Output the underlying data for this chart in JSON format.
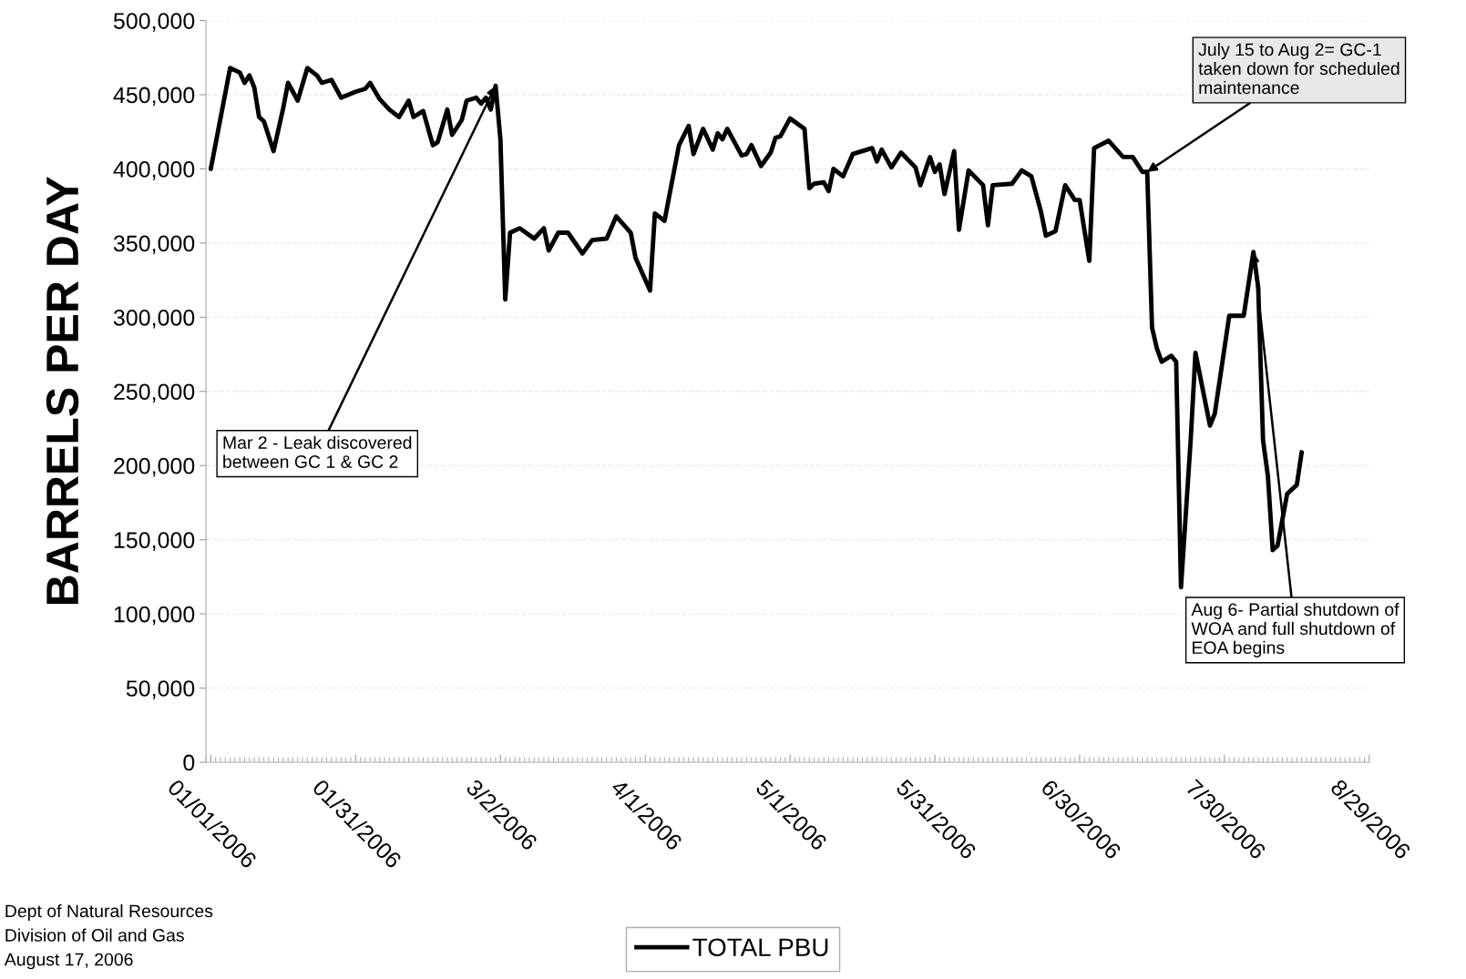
{
  "chart_data": {
    "type": "line",
    "ylabel": "BARRELS PER DAY",
    "x": [
      "2006-01-01",
      "2006-01-05",
      "2006-01-07",
      "2006-01-08",
      "2006-01-09",
      "2006-01-10",
      "2006-01-11",
      "2006-01-12",
      "2006-01-14",
      "2006-01-16",
      "2006-01-17",
      "2006-01-19",
      "2006-01-21",
      "2006-01-23",
      "2006-01-24",
      "2006-01-26",
      "2006-01-28",
      "2006-01-31",
      "2006-02-02",
      "2006-02-03",
      "2006-02-05",
      "2006-02-07",
      "2006-02-09",
      "2006-02-11",
      "2006-02-12",
      "2006-02-14",
      "2006-02-16",
      "2006-02-17",
      "2006-02-19",
      "2006-02-20",
      "2006-02-22",
      "2006-02-23",
      "2006-02-25",
      "2006-02-26",
      "2006-02-27",
      "2006-02-28",
      "2006-03-01",
      "2006-03-02",
      "2006-03-03",
      "2006-03-04",
      "2006-03-06",
      "2006-03-09",
      "2006-03-11",
      "2006-03-12",
      "2006-03-14",
      "2006-03-16",
      "2006-03-19",
      "2006-03-21",
      "2006-03-24",
      "2006-03-26",
      "2006-03-29",
      "2006-03-30",
      "2006-04-02",
      "2006-04-03",
      "2006-04-05",
      "2006-04-08",
      "2006-04-10",
      "2006-04-11",
      "2006-04-13",
      "2006-04-15",
      "2006-04-16",
      "2006-04-17",
      "2006-04-18",
      "2006-04-21",
      "2006-04-22",
      "2006-04-23",
      "2006-04-25",
      "2006-04-27",
      "2006-04-28",
      "2006-04-29",
      "2006-05-01",
      "2006-05-04",
      "2006-05-05",
      "2006-05-06",
      "2006-05-08",
      "2006-05-09",
      "2006-05-10",
      "2006-05-12",
      "2006-05-14",
      "2006-05-18",
      "2006-05-19",
      "2006-05-20",
      "2006-05-22",
      "2006-05-24",
      "2006-05-27",
      "2006-05-28",
      "2006-05-30",
      "2006-05-31",
      "2006-06-01",
      "2006-06-02",
      "2006-06-04",
      "2006-06-05",
      "2006-06-07",
      "2006-06-10",
      "2006-06-11",
      "2006-06-12",
      "2006-06-16",
      "2006-06-18",
      "2006-06-20",
      "2006-06-22",
      "2006-06-23",
      "2006-06-25",
      "2006-06-27",
      "2006-06-29",
      "2006-06-30",
      "2006-07-02",
      "2006-07-03",
      "2006-07-06",
      "2006-07-09",
      "2006-07-11",
      "2006-07-13",
      "2006-07-14",
      "2006-07-15",
      "2006-07-16",
      "2006-07-17",
      "2006-07-19",
      "2006-07-20",
      "2006-07-21",
      "2006-07-23",
      "2006-07-24",
      "2006-07-27",
      "2006-07-28",
      "2006-07-31",
      "2006-08-03",
      "2006-08-05",
      "2006-08-06",
      "2006-08-07",
      "2006-08-08",
      "2006-08-09",
      "2006-08-10",
      "2006-08-12",
      "2006-08-14",
      "2006-08-15"
    ],
    "series": [
      {
        "name": "TOTAL PBU",
        "color": "#000000",
        "values": [
          400000,
          468000,
          465000,
          458000,
          463000,
          455000,
          435000,
          432000,
          412000,
          441000,
          458000,
          446000,
          468000,
          463000,
          458000,
          460000,
          448000,
          452000,
          454000,
          458000,
          447000,
          440000,
          435000,
          446000,
          435000,
          439000,
          416000,
          418000,
          440000,
          423000,
          433000,
          446000,
          448000,
          444000,
          448000,
          440000,
          456000,
          420000,
          312000,
          357000,
          360000,
          353000,
          360000,
          345000,
          357000,
          357000,
          343000,
          352000,
          353000,
          368000,
          357000,
          340000,
          318000,
          370000,
          365000,
          416000,
          429000,
          410000,
          427000,
          413000,
          424000,
          420000,
          427000,
          409000,
          410000,
          416000,
          402000,
          411000,
          421000,
          422000,
          434000,
          427000,
          387000,
          390000,
          391000,
          385000,
          400000,
          395000,
          410000,
          414000,
          405000,
          413000,
          401000,
          411000,
          401000,
          389000,
          408000,
          398000,
          403000,
          383000,
          412000,
          359000,
          399000,
          389000,
          362000,
          389000,
          390000,
          399000,
          395000,
          371000,
          355000,
          358000,
          389000,
          379000,
          379000,
          338000,
          414000,
          419000,
          408000,
          408000,
          398000,
          398000,
          293000,
          279000,
          270000,
          274000,
          270000,
          118000,
          217000,
          276000,
          227000,
          235000,
          301000,
          301000,
          344000,
          320000,
          217000,
          193000,
          143000,
          146000,
          181000,
          187000,
          209000
        ]
      }
    ],
    "xlim": [
      "2005-12-31",
      "2006-08-29"
    ],
    "xticks": [
      {
        "value": "2006-01-01",
        "label": "01/01/2006"
      },
      {
        "value": "2006-01-31",
        "label": "01/31/2006"
      },
      {
        "value": "2006-03-02",
        "label": "3/2/2006"
      },
      {
        "value": "2006-04-01",
        "label": "4/1/2006"
      },
      {
        "value": "2006-05-01",
        "label": "5/1/2006"
      },
      {
        "value": "2006-05-31",
        "label": "5/31/2006"
      },
      {
        "value": "2006-06-30",
        "label": "6/30/2006"
      },
      {
        "value": "2006-07-30",
        "label": "7/30/2006"
      },
      {
        "value": "2006-08-29",
        "label": "8/29/2006"
      }
    ],
    "ylim": [
      0,
      500000
    ],
    "yticks": [
      {
        "value": 0,
        "label": "0"
      },
      {
        "value": 50000,
        "label": "50,000"
      },
      {
        "value": 100000,
        "label": "100,000"
      },
      {
        "value": 150000,
        "label": "150,000"
      },
      {
        "value": 200000,
        "label": "200,000"
      },
      {
        "value": 250000,
        "label": "250,000"
      },
      {
        "value": 300000,
        "label": "300,000"
      },
      {
        "value": 350000,
        "label": "350,000"
      },
      {
        "value": 400000,
        "label": "400,000"
      },
      {
        "value": 450000,
        "label": "450,000"
      },
      {
        "value": 500000,
        "label": "500,000"
      }
    ],
    "grid": "y",
    "legend": "bottom",
    "marker": "none",
    "line_style": "solid",
    "annotations": [
      {
        "text": "Mar 2 - Leak discovered\nbetween GC 1 & GC 2",
        "x": "2006-03-01",
        "y": 456000
      },
      {
        "text": "July 15 to Aug 2= GC-1\ntaken down for scheduled\nmaintenance",
        "x": "2006-07-14",
        "y": 398000
      },
      {
        "text": "Aug 6- Partial shutdown of\nWOA and full shutdown of\nEOA begins",
        "x": "2006-08-05",
        "y": 344000
      },
      "Dept of Natural Resources\nDivision of Oil and Gas\nAugust 17, 2006"
    ]
  }
}
